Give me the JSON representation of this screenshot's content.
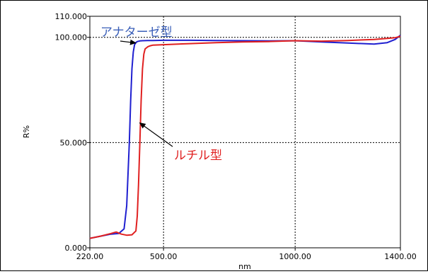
{
  "chart_data": {
    "type": "line",
    "xlabel": "nm",
    "ylabel": "R%",
    "xlim": [
      220,
      1400
    ],
    "ylim": [
      0,
      110
    ],
    "x_ticks": [
      {
        "value": 220,
        "label": "220.00"
      },
      {
        "value": 500,
        "label": "500.00"
      },
      {
        "value": 1000,
        "label": "1000.00"
      },
      {
        "value": 1400,
        "label": "1400.00"
      }
    ],
    "y_ticks": [
      {
        "value": 0,
        "label": "0.000"
      },
      {
        "value": 50,
        "label": "50.000"
      },
      {
        "value": 100,
        "label": "100.000"
      },
      {
        "value": 110,
        "label": "110.000"
      }
    ],
    "grid": true,
    "series": [
      {
        "name": "アナターゼ型",
        "color": "#1f1fd0",
        "x": [
          220,
          260,
          300,
          330,
          350,
          360,
          370,
          375,
          380,
          385,
          390,
          395,
          400,
          410,
          420,
          440,
          460,
          500,
          600,
          700,
          800,
          900,
          1000,
          1100,
          1200,
          1300,
          1350,
          1380,
          1400
        ],
        "y": [
          4.5,
          5.5,
          6.5,
          6.8,
          9,
          20,
          50,
          70,
          85,
          93,
          96.5,
          97.5,
          98,
          98.3,
          98.4,
          98.5,
          98.5,
          98.6,
          98.6,
          98.5,
          98.4,
          98.3,
          98.4,
          97.8,
          97.3,
          96.8,
          97.5,
          99,
          101
        ]
      },
      {
        "name": "ルチル型",
        "color": "#e02020",
        "x": [
          220,
          260,
          300,
          320,
          340,
          360,
          380,
          395,
          400,
          405,
          410,
          415,
          420,
          425,
          430,
          440,
          450,
          460,
          500,
          600,
          700,
          800,
          900,
          1000,
          1100,
          1200,
          1300,
          1350,
          1380,
          1400
        ],
        "y": [
          4.5,
          5.5,
          6.8,
          7.5,
          6.5,
          6,
          6.2,
          8,
          15,
          30,
          50,
          70,
          85,
          92,
          94.5,
          95.5,
          96,
          96.3,
          96.5,
          97,
          97.5,
          97.8,
          98,
          98.4,
          98.2,
          98.5,
          99,
          99.5,
          99.8,
          100.5
        ]
      }
    ],
    "annotations": [
      {
        "text": "アナターゼ型",
        "color": "#3a5fb8",
        "arrow_to": [
          400,
          98
        ]
      },
      {
        "text": "ルチル型",
        "color": "#e02020",
        "arrow_to": [
          415,
          60
        ]
      }
    ]
  }
}
